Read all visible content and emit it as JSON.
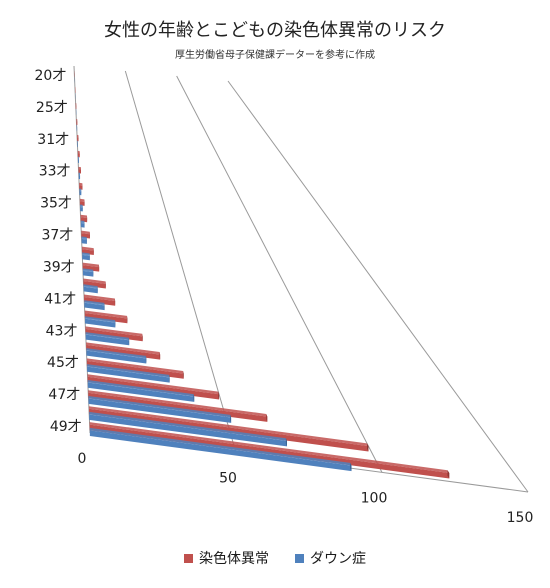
{
  "chart_data": {
    "type": "bar",
    "orientation": "horizontal",
    "title": "女性の年齢とこどもの染色体異常のリスク",
    "subtitle": "厚生労働省母子保健課データーを参考に作成",
    "categories": [
      "20才",
      "",
      "25才",
      "",
      "31才",
      "",
      "33才",
      "",
      "35才",
      "",
      "37才",
      "",
      "39才",
      "",
      "41才",
      "",
      "43才",
      "",
      "45才",
      "",
      "47才",
      "",
      "49才"
    ],
    "series": [
      {
        "name": "染色体異常",
        "color": "#c0504d",
        "values": [
          0.2,
          0.3,
          0.5,
          0.7,
          1.0,
          1.3,
          1.6,
          2.0,
          2.7,
          3.6,
          4.6,
          6.0,
          8.0,
          10.5,
          14.0,
          18.5,
          24.0,
          30.0,
          38.0,
          50.0,
          66.0,
          100.0,
          125.0
        ]
      },
      {
        "name": "ダウン症",
        "color": "#4f81bd",
        "values": [
          0.1,
          0.1,
          0.2,
          0.3,
          0.4,
          0.6,
          0.8,
          1.1,
          1.5,
          2.0,
          2.8,
          3.8,
          5.0,
          6.5,
          9.0,
          13.0,
          18.0,
          24.0,
          32.0,
          40.0,
          52.0,
          70.0,
          90.0
        ]
      }
    ],
    "xlim": [
      0,
      150
    ],
    "x_ticks": [
      0,
      50,
      100,
      150
    ],
    "grid": true,
    "legend_position": "bottom"
  }
}
